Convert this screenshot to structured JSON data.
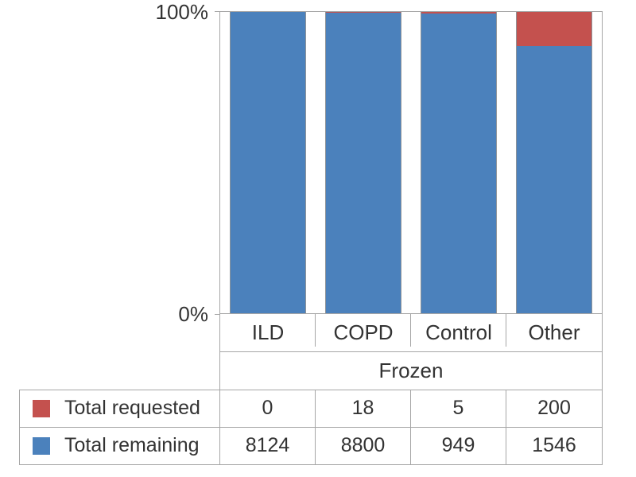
{
  "chart_data": {
    "type": "bar",
    "stacking": "percent",
    "title": "",
    "xlabel": "",
    "ylabel": "",
    "group_label": "Frozen",
    "categories": [
      "ILD",
      "COPD",
      "Control",
      "Other"
    ],
    "series": [
      {
        "name": "Total requested",
        "color": "#c4514e",
        "values": [
          0,
          18,
          5,
          200
        ]
      },
      {
        "name": "Total remaining",
        "color": "#4b81bc",
        "values": [
          8124,
          8800,
          949,
          1546
        ]
      }
    ],
    "yticks": [
      "100%",
      "0%"
    ],
    "ylim_percent": [
      0,
      100
    ],
    "grid": false,
    "legend_position": "table-rows-below"
  },
  "colors": {
    "requested": "#c4514e",
    "remaining": "#4b81bc",
    "frame": "#a6a6a6",
    "text": "#333333"
  }
}
